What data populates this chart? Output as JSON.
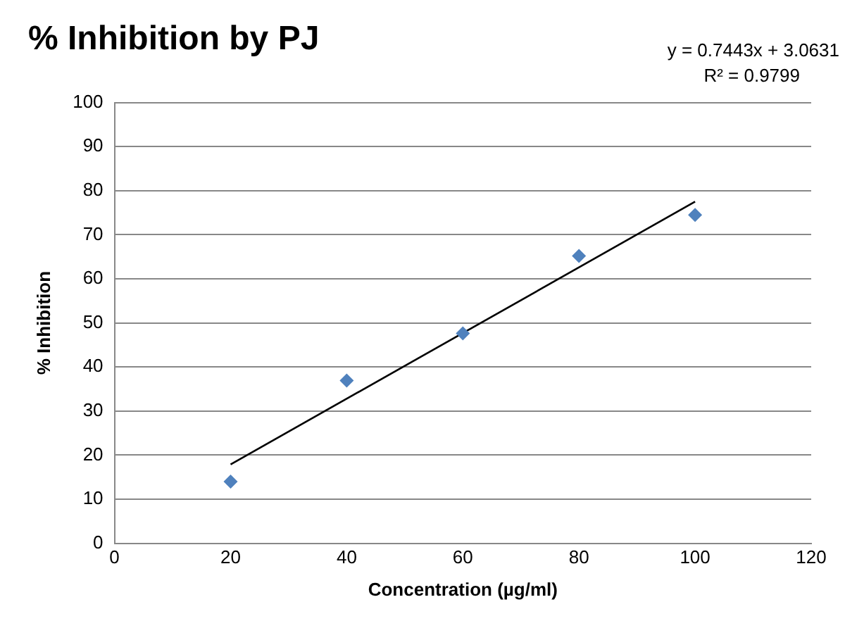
{
  "chart_data": {
    "type": "scatter",
    "title": "% Inhibition by PJ",
    "xlabel": "Concentration (µg/ml)",
    "ylabel": "% Inhibition",
    "x": [
      20,
      40,
      60,
      80,
      100
    ],
    "series": [
      {
        "color": "#4f81bd",
        "values": [
          14.0,
          36.9,
          47.6,
          65.2,
          74.5
        ],
        "marker": "diamond"
      },
      {
        "type": "line",
        "color": "#000000",
        "x": [
          20,
          100
        ],
        "values": [
          17.9,
          77.5
        ],
        "marker": "none",
        "line_style": "solid"
      }
    ],
    "annotations": [
      "y = 0.7443x + 3.0631",
      "R² = 0.9799"
    ],
    "xlim": [
      0,
      120
    ],
    "xticks": [
      0,
      20,
      40,
      60,
      80,
      100,
      120
    ],
    "ylim": [
      0,
      100
    ],
    "yticks": [
      0,
      10,
      20,
      30,
      40,
      50,
      60,
      70,
      80,
      90,
      100
    ],
    "grid": "y",
    "legend": false
  }
}
